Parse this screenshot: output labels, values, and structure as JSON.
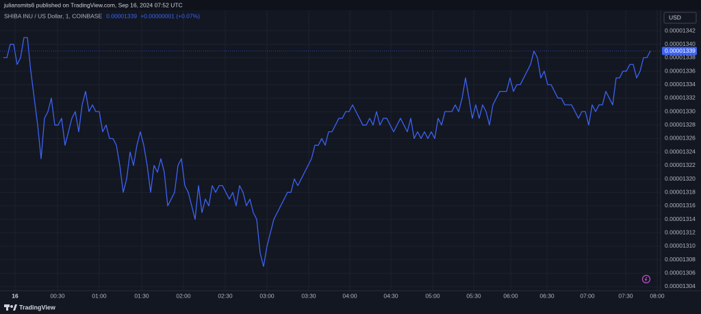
{
  "header": "juliansmits6 published on TradingView.com, Sep 16, 2024 07:52 UTC",
  "footer": "TradingView",
  "chart_data": {
    "type": "line",
    "symbol": "SHIBA INU / US Dollar, 1, COINBASE",
    "last_price": 1.339e-05,
    "change": "+0.00000001 (+0.07%)",
    "currency": "USD",
    "color": "#3d63f5",
    "grid": true,
    "xlim": [
      -1,
      192
    ],
    "xticks": [
      {
        "value": 3.4,
        "label": "16"
      },
      {
        "value": 15.8,
        "label": "00:30"
      },
      {
        "value": 28,
        "label": "01:00"
      },
      {
        "value": 40.4,
        "label": "01:30"
      },
      {
        "value": 52.6,
        "label": "02:00"
      },
      {
        "value": 64.8,
        "label": "02:30"
      },
      {
        "value": 77,
        "label": "03:00"
      },
      {
        "value": 89.2,
        "label": "03:30"
      },
      {
        "value": 101.2,
        "label": "04:00"
      },
      {
        "value": 113.2,
        "label": "04:30"
      },
      {
        "value": 125.4,
        "label": "05:00"
      },
      {
        "value": 137.4,
        "label": "05:30"
      },
      {
        "value": 148.2,
        "label": "06:00"
      },
      {
        "value": 158.8,
        "label": "06:30"
      },
      {
        "value": 170.6,
        "label": "07:00"
      },
      {
        "value": 181.8,
        "label": "07:30"
      },
      {
        "value": 191,
        "label": "08:00"
      }
    ],
    "ylim": [
      1.30339e-05,
      1.34505e-05
    ],
    "yticks": [
      1.304e-05,
      1.306e-05,
      1.308e-05,
      {
        "value": 1.31e-05,
        "label": "0.00001310"
      },
      1.312e-05,
      1.314e-05,
      1.316e-05,
      1.318e-05,
      {
        "value": 1.32e-05,
        "label": "0.00001320"
      },
      1.322e-05,
      1.324e-05,
      1.326e-05,
      1.328e-05,
      {
        "value": 1.33e-05,
        "label": "0.00001330"
      },
      1.332e-05,
      1.334e-05,
      1.336e-05,
      1.338e-05,
      {
        "value": 1.34e-05,
        "label": "0.00001340"
      },
      1.342e-05
    ],
    "values": [
      1.338e-05,
      1.338e-05,
      1.34e-05,
      1.34e-05,
      1.337e-05,
      1.338e-05,
      1.341e-05,
      1.341e-05,
      1.336e-05,
      1.332e-05,
      1.328e-05,
      1.323e-05,
      1.329e-05,
      1.33e-05,
      1.332e-05,
      1.328e-05,
      1.328e-05,
      1.329e-05,
      1.325e-05,
      1.327e-05,
      1.329e-05,
      1.33e-05,
      1.327e-05,
      1.331e-05,
      1.333e-05,
      1.33e-05,
      1.331e-05,
      1.33e-05,
      1.33e-05,
      1.327e-05,
      1.328e-05,
      1.326e-05,
      1.326e-05,
      1.325e-05,
      1.322e-05,
      1.318e-05,
      1.32e-05,
      1.324e-05,
      1.322e-05,
      1.325e-05,
      1.327e-05,
      1.325e-05,
      1.322e-05,
      1.318e-05,
      1.322e-05,
      1.321e-05,
      1.323e-05,
      1.321e-05,
      1.316e-05,
      1.317e-05,
      1.318e-05,
      1.322e-05,
      1.323e-05,
      1.319e-05,
      1.318e-05,
      1.316e-05,
      1.314e-05,
      1.319e-05,
      1.315e-05,
      1.317e-05,
      1.316e-05,
      1.319e-05,
      1.318e-05,
      1.319e-05,
      1.319e-05,
      1.318e-05,
      1.317e-05,
      1.318e-05,
      1.316e-05,
      1.319e-05,
      1.318e-05,
      1.316e-05,
      1.317e-05,
      1.315e-05,
      1.314e-05,
      1.309e-05,
      1.307e-05,
      1.31e-05,
      1.312e-05,
      1.314e-05,
      1.315e-05,
      1.316e-05,
      1.317e-05,
      1.318e-05,
      1.318e-05,
      1.32e-05,
      1.319e-05,
      1.32e-05,
      1.321e-05,
      1.322e-05,
      1.323e-05,
      1.325e-05,
      1.325e-05,
      1.326e-05,
      1.325e-05,
      1.327e-05,
      1.327e-05,
      1.328e-05,
      1.329e-05,
      1.329e-05,
      1.33e-05,
      1.33e-05,
      1.331e-05,
      1.33e-05,
      1.329e-05,
      1.328e-05,
      1.328e-05,
      1.329e-05,
      1.328e-05,
      1.33e-05,
      1.328e-05,
      1.329e-05,
      1.329e-05,
      1.328e-05,
      1.327e-05,
      1.328e-05,
      1.329e-05,
      1.328e-05,
      1.327e-05,
      1.329e-05,
      1.326e-05,
      1.327e-05,
      1.326e-05,
      1.327e-05,
      1.326e-05,
      1.327e-05,
      1.326e-05,
      1.329e-05,
      1.328e-05,
      1.33e-05,
      1.33e-05,
      1.33e-05,
      1.331e-05,
      1.33e-05,
      1.332e-05,
      1.335e-05,
      1.332e-05,
      1.329e-05,
      1.331e-05,
      1.329e-05,
      1.331e-05,
      1.33e-05,
      1.328e-05,
      1.331e-05,
      1.332e-05,
      1.333e-05,
      1.333e-05,
      1.333e-05,
      1.335e-05,
      1.333e-05,
      1.334e-05,
      1.334e-05,
      1.335e-05,
      1.336e-05,
      1.337e-05,
      1.339e-05,
      1.338e-05,
      1.335e-05,
      1.336e-05,
      1.334e-05,
      1.334e-05,
      1.333e-05,
      1.332e-05,
      1.332e-05,
      1.331e-05,
      1.331e-05,
      1.331e-05,
      1.33e-05,
      1.329e-05,
      1.33e-05,
      1.33e-05,
      1.328e-05,
      1.331e-05,
      1.33e-05,
      1.331e-05,
      1.331e-05,
      1.333e-05,
      1.332e-05,
      1.331e-05,
      1.335e-05,
      1.335e-05,
      1.336e-05,
      1.336e-05,
      1.337e-05,
      1.337e-05,
      1.335e-05,
      1.336e-05,
      1.338e-05,
      1.338e-05,
      1.339e-05
    ]
  }
}
